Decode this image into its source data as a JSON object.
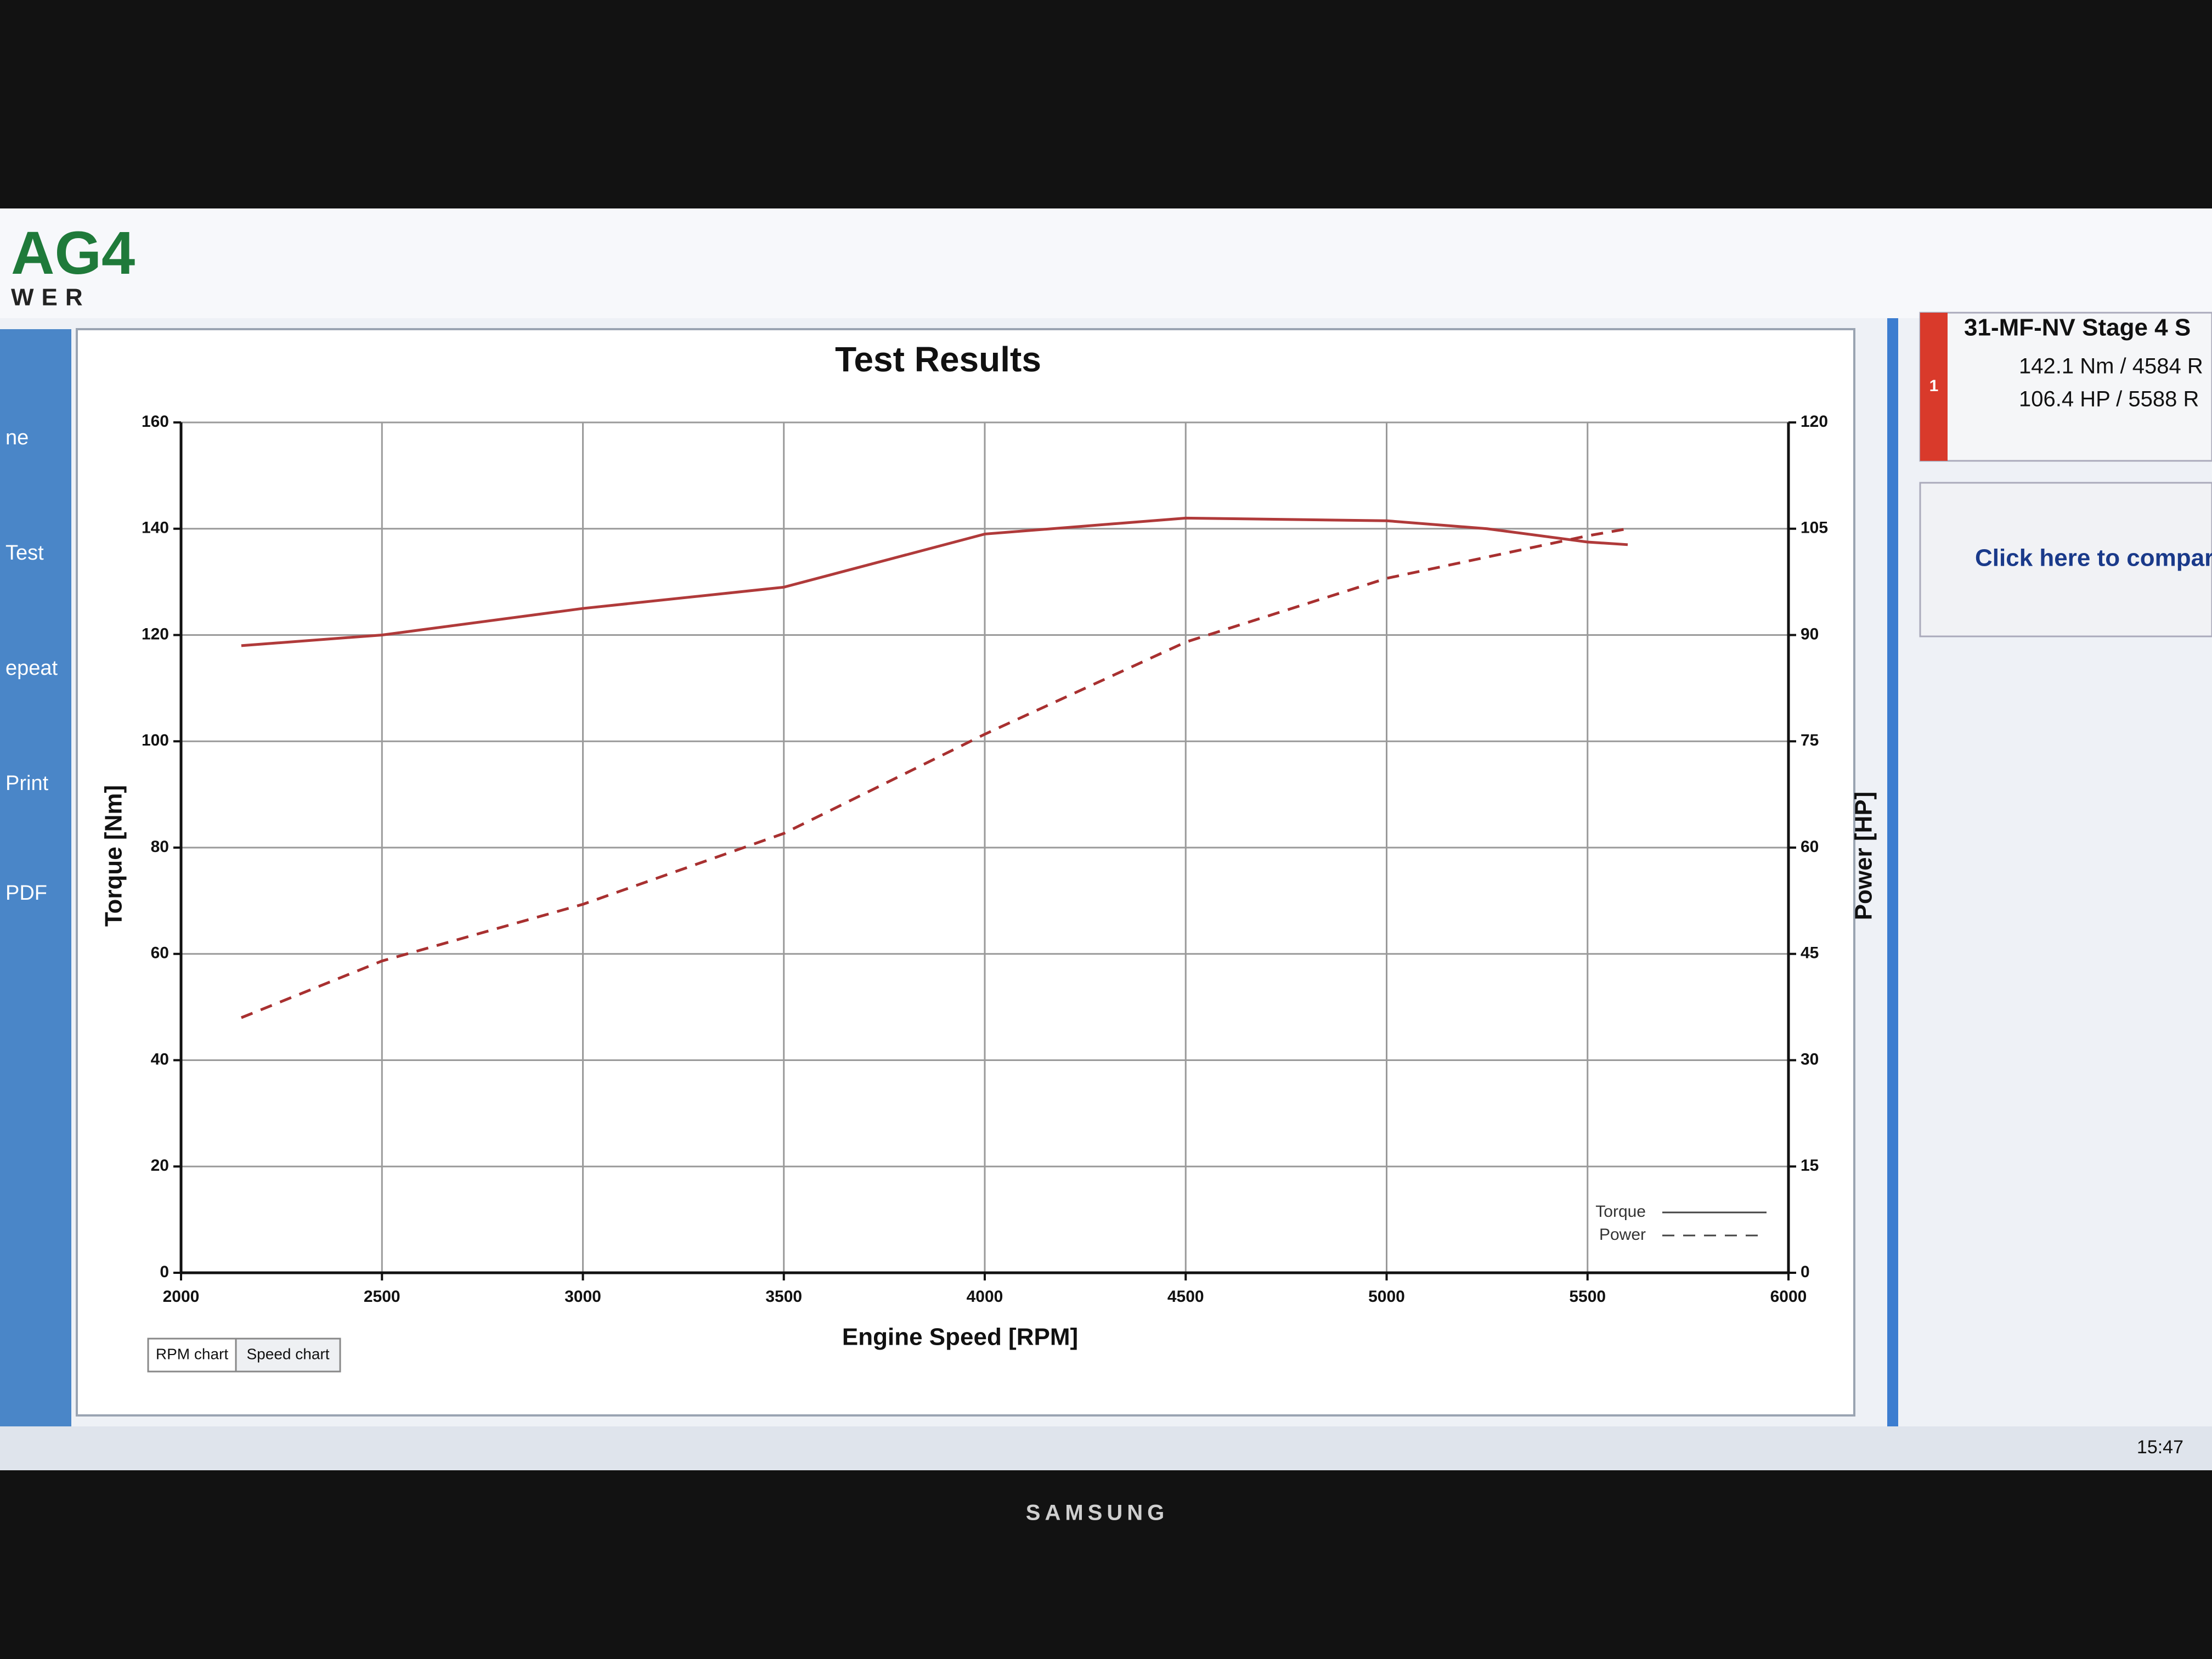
{
  "app": {
    "logo_top": "AG4",
    "logo_bottom": "WER",
    "sidebar": [
      "ne",
      "Test",
      "epeat",
      "Print",
      "PDF"
    ],
    "tabs": [
      "RPM chart",
      "Speed chart"
    ],
    "result": {
      "index": "1",
      "title": "31-MF-NV Stage 4 S",
      "torque_line": "142.1 Nm / 4584 R",
      "power_line": "106.4 HP / 5588 R"
    },
    "compare": "Click here to compar",
    "clock": "15:47",
    "brand": "SAMSUNG"
  },
  "chart_data": {
    "type": "line",
    "title": "Test Results",
    "x_label": "Engine Speed [RPM]",
    "y_label": "Torque [Nm]",
    "y2_label": "Power [HP]",
    "x": [
      2150,
      2500,
      3000,
      3500,
      4000,
      4500,
      5000,
      5250,
      5500,
      5600
    ],
    "series": [
      {
        "name": "Torque",
        "color": "#b03a3a",
        "style": "solid",
        "values": [
          118,
          120,
          125,
          129,
          139,
          142,
          141.5,
          140,
          137.5,
          137
        ]
      },
      {
        "name": "Power",
        "color": "#a83030",
        "style": "dashed",
        "axis": "y2",
        "values": [
          36,
          44,
          52,
          62,
          76,
          89,
          98,
          101,
          104,
          105
        ]
      }
    ],
    "xlim": [
      2000,
      6000
    ],
    "xticks": [
      2000,
      2500,
      3000,
      3500,
      4000,
      4500,
      5000,
      5500,
      6000
    ],
    "ylim": [
      0,
      160
    ],
    "yticks": [
      0,
      20,
      40,
      60,
      80,
      100,
      120,
      140,
      160
    ],
    "y2lim": [
      0,
      120
    ],
    "y2ticks": [
      0,
      15,
      30,
      45,
      60,
      75,
      90,
      105,
      120
    ],
    "grid": true,
    "legend": "lower right"
  }
}
